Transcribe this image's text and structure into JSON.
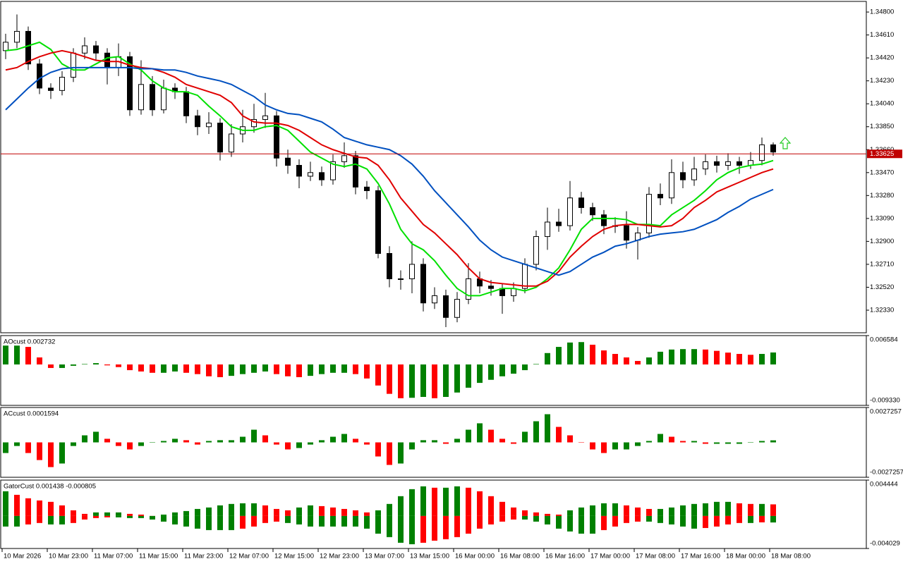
{
  "chart_data": [
    {
      "type": "candlestick",
      "ylim": [
        1.32143,
        1.34888
      ],
      "yticks": [
        {
          "value": 1.348,
          "label": "1.34800"
        },
        {
          "value": 1.3461,
          "label": "1.34610"
        },
        {
          "value": 1.3442,
          "label": "1.34420"
        },
        {
          "value": 1.3423,
          "label": "1.34230"
        },
        {
          "value": 1.3404,
          "label": "1.34040"
        },
        {
          "value": 1.3385,
          "label": "1.33850"
        },
        {
          "value": 1.3366,
          "label": "1.33660"
        },
        {
          "value": 1.3347,
          "label": "1.33470"
        },
        {
          "value": 1.3328,
          "label": "1.33280"
        },
        {
          "value": 1.3309,
          "label": "1.33090"
        },
        {
          "value": 1.329,
          "label": "1.32900"
        },
        {
          "value": 1.3271,
          "label": "1.32710"
        },
        {
          "value": 1.3252,
          "label": "1.32520"
        },
        {
          "value": 1.3233,
          "label": "1.32330"
        }
      ],
      "current_price": 1.33625,
      "current_price_color": "#c00000",
      "up_color": "#ffffff",
      "down_color": "#000000",
      "open": [
        1.3448,
        1.3455,
        1.3464,
        1.3437,
        1.3417,
        1.3415,
        1.3426,
        1.3446,
        1.3452,
        1.3446,
        1.3434,
        1.3443,
        1.3399,
        1.342,
        1.3399,
        1.3417,
        1.3414,
        1.3394,
        1.3385,
        1.3388,
        1.3364,
        1.3379,
        1.3385,
        1.3391,
        1.3394,
        1.3359,
        1.3353,
        1.3344,
        1.3347,
        1.3341,
        1.3356,
        1.3361,
        1.3335,
        1.3332,
        1.328,
        1.3259,
        1.3259,
        1.3271,
        1.3239,
        1.3245,
        1.3227,
        1.3242,
        1.3259,
        1.3253,
        1.3251,
        1.3245,
        1.3251,
        1.3271,
        1.3294,
        1.3306,
        1.3303,
        1.3326,
        1.3318,
        1.3312,
        1.3303,
        1.3303,
        1.3291,
        1.3297,
        1.3329,
        1.3326,
        1.3347,
        1.3341,
        1.335,
        1.3356,
        1.3353,
        1.3356,
        1.3353,
        1.3357,
        1.337
      ],
      "high": [
        1.3462,
        1.3478,
        1.3468,
        1.3441,
        1.3421,
        1.3431,
        1.345,
        1.3459,
        1.3456,
        1.345,
        1.3454,
        1.3447,
        1.344,
        1.3427,
        1.3424,
        1.3421,
        1.3418,
        1.3399,
        1.3397,
        1.3392,
        1.3387,
        1.3399,
        1.3404,
        1.3413,
        1.3398,
        1.3366,
        1.3358,
        1.3356,
        1.3352,
        1.3362,
        1.3372,
        1.3365,
        1.334,
        1.3336,
        1.3286,
        1.3266,
        1.329,
        1.3276,
        1.3252,
        1.325,
        1.3248,
        1.3272,
        1.3265,
        1.3258,
        1.3255,
        1.3256,
        1.3276,
        1.3299,
        1.3318,
        1.3317,
        1.334,
        1.3331,
        1.3322,
        1.3316,
        1.331,
        1.3315,
        1.3302,
        1.3335,
        1.3338,
        1.3358,
        1.3356,
        1.336,
        1.3362,
        1.3361,
        1.3363,
        1.336,
        1.3364,
        1.3376,
        1.3372
      ],
      "low": [
        1.3441,
        1.345,
        1.3432,
        1.3412,
        1.3408,
        1.3411,
        1.3422,
        1.3441,
        1.344,
        1.342,
        1.3427,
        1.3394,
        1.3395,
        1.3394,
        1.3396,
        1.3408,
        1.3388,
        1.3378,
        1.3379,
        1.3357,
        1.336,
        1.3372,
        1.338,
        1.3384,
        1.3352,
        1.3346,
        1.3334,
        1.334,
        1.3336,
        1.3337,
        1.3351,
        1.3329,
        1.3325,
        1.3276,
        1.3252,
        1.325,
        1.3247,
        1.3232,
        1.3234,
        1.3219,
        1.3223,
        1.3238,
        1.3247,
        1.3245,
        1.323,
        1.324,
        1.3247,
        1.3266,
        1.3283,
        1.3298,
        1.3299,
        1.3313,
        1.3307,
        1.3296,
        1.3297,
        1.3284,
        1.3275,
        1.3293,
        1.332,
        1.3321,
        1.3334,
        1.3336,
        1.3345,
        1.3347,
        1.3349,
        1.3346,
        1.335,
        1.3353,
        1.3361
      ],
      "close": [
        1.3455,
        1.3464,
        1.3437,
        1.3417,
        1.3415,
        1.3426,
        1.3446,
        1.3452,
        1.3446,
        1.3434,
        1.3443,
        1.3399,
        1.342,
        1.3399,
        1.3417,
        1.3414,
        1.3394,
        1.3385,
        1.3388,
        1.3364,
        1.3379,
        1.3385,
        1.3391,
        1.3394,
        1.3359,
        1.3353,
        1.3344,
        1.3347,
        1.3341,
        1.3356,
        1.3361,
        1.3335,
        1.3332,
        1.328,
        1.3259,
        1.3259,
        1.3271,
        1.3239,
        1.3245,
        1.3227,
        1.3242,
        1.3259,
        1.3253,
        1.3251,
        1.3245,
        1.3251,
        1.3271,
        1.3294,
        1.3306,
        1.3303,
        1.3326,
        1.3318,
        1.3312,
        1.3303,
        1.3303,
        1.3291,
        1.3297,
        1.3329,
        1.3326,
        1.3347,
        1.3341,
        1.335,
        1.3356,
        1.3353,
        1.3356,
        1.3353,
        1.3357,
        1.337,
        1.3364
      ],
      "series": [
        {
          "color": "#00e000",
          "values": [
            1.3448,
            1.3449,
            1.3452,
            1.3455,
            1.3449,
            1.3437,
            1.3432,
            1.3432,
            1.3437,
            1.3442,
            1.3443,
            1.3437,
            1.3432,
            1.3423,
            1.3417,
            1.3414,
            1.3414,
            1.3411,
            1.3402,
            1.3394,
            1.3385,
            1.3382,
            1.3382,
            1.3385,
            1.3386,
            1.3382,
            1.3373,
            1.3364,
            1.3359,
            1.3354,
            1.3352,
            1.3354,
            1.335,
            1.3338,
            1.3321,
            1.33,
            1.3288,
            1.3283,
            1.3274,
            1.3262,
            1.3251,
            1.3245,
            1.3245,
            1.3248,
            1.3251,
            1.3251,
            1.3249,
            1.3252,
            1.3259,
            1.3268,
            1.3283,
            1.33,
            1.3309,
            1.3309,
            1.3309,
            1.3308,
            1.3304,
            1.3304,
            1.3303,
            1.3312,
            1.3318,
            1.3324,
            1.3332,
            1.3341,
            1.3347,
            1.3351,
            1.3353,
            1.3354,
            1.3357
          ]
        },
        {
          "color": "#e00000",
          "values": [
            1.3432,
            1.3434,
            1.3439,
            1.3443,
            1.3446,
            1.3448,
            1.3446,
            1.3443,
            1.344,
            1.3439,
            1.3439,
            1.3436,
            1.3434,
            1.3433,
            1.343,
            1.3426,
            1.342,
            1.3417,
            1.3414,
            1.3411,
            1.3405,
            1.3394,
            1.3389,
            1.3388,
            1.3388,
            1.3386,
            1.3382,
            1.3376,
            1.337,
            1.3366,
            1.3363,
            1.336,
            1.3359,
            1.3353,
            1.3341,
            1.3326,
            1.3315,
            1.3304,
            1.3297,
            1.3288,
            1.3279,
            1.3268,
            1.3259,
            1.3256,
            1.3255,
            1.3254,
            1.3253,
            1.3253,
            1.3257,
            1.3265,
            1.3277,
            1.3286,
            1.3294,
            1.33,
            1.3303,
            1.3304,
            1.3304,
            1.3303,
            1.3302,
            1.3303,
            1.3309,
            1.3318,
            1.3324,
            1.3331,
            1.3335,
            1.3339,
            1.3343,
            1.3347,
            1.335
          ]
        },
        {
          "color": "#0050c0",
          "values": [
            1.3399,
            1.3408,
            1.3417,
            1.3425,
            1.343,
            1.3433,
            1.3434,
            1.3434,
            1.3434,
            1.3434,
            1.3434,
            1.3434,
            1.3433,
            1.3433,
            1.3432,
            1.3432,
            1.343,
            1.3427,
            1.3425,
            1.3423,
            1.342,
            1.3415,
            1.341,
            1.3403,
            1.3399,
            1.3396,
            1.3395,
            1.3392,
            1.3389,
            1.3383,
            1.3376,
            1.3373,
            1.337,
            1.3368,
            1.3366,
            1.3361,
            1.3354,
            1.3344,
            1.3332,
            1.3322,
            1.3312,
            1.3302,
            1.3291,
            1.3283,
            1.3277,
            1.3274,
            1.3271,
            1.3268,
            1.3265,
            1.3262,
            1.3265,
            1.3271,
            1.3277,
            1.3281,
            1.3286,
            1.3288,
            1.3291,
            1.3294,
            1.3296,
            1.3297,
            1.3298,
            1.33,
            1.3304,
            1.3308,
            1.3314,
            1.3319,
            1.3325,
            1.3329,
            1.3333
          ]
        }
      ],
      "time_labels": [
        "10 Mar 2026",
        "10 Mar 23:00",
        "11 Mar 07:00",
        "11 Mar 15:00",
        "11 Mar 23:00",
        "12 Mar 07:00",
        "12 Mar 15:00",
        "12 Mar 23:00",
        "13 Mar 07:00",
        "13 Mar 15:00",
        "16 Mar 00:00",
        "16 Mar 08:00",
        "16 Mar 16:00",
        "17 Mar 00:00",
        "17 Mar 08:00",
        "17 Mar 16:00",
        "18 Mar 00:00",
        "18 Mar 08:00"
      ]
    },
    {
      "type": "bar",
      "title": "AOcust 0.002732",
      "ylim": [
        -0.00933,
        0.006584
      ],
      "yticks": [
        0.006584,
        {
          "value": -0.00933,
          "label": "-0.009330"
        }
      ],
      "up_color": "#008000",
      "down_color": "#ff0000",
      "values": [
        0.0043,
        0.0043,
        0.004,
        0.0016,
        -0.0008,
        -0.0008,
        -0.0003,
        0.0001,
        0.0003,
        -0.0002,
        -0.0006,
        -0.0013,
        -0.0016,
        -0.0019,
        -0.0019,
        -0.0016,
        -0.0019,
        -0.0022,
        -0.0027,
        -0.0029,
        -0.0026,
        -0.0022,
        -0.0019,
        -0.0016,
        -0.0022,
        -0.0027,
        -0.0029,
        -0.0026,
        -0.0022,
        -0.0019,
        -0.0019,
        -0.0022,
        -0.0032,
        -0.0048,
        -0.0067,
        -0.0077,
        -0.0076,
        -0.0074,
        -0.0077,
        -0.0074,
        -0.0064,
        -0.0053,
        -0.0042,
        -0.0035,
        -0.0027,
        -0.0021,
        -0.0013,
        0.0001,
        0.0026,
        0.004,
        0.005,
        0.0051,
        0.0045,
        0.0032,
        0.0024,
        0.0016,
        0.0008,
        0.0016,
        0.0029,
        0.0034,
        0.0035,
        0.0035,
        0.0034,
        0.0031,
        0.0027,
        0.0024,
        0.0022,
        0.0024,
        0.002732
      ]
    },
    {
      "type": "bar",
      "title": "ACcust 0.0001594",
      "ylim": [
        -0.0027257,
        0.0027257
      ],
      "yticks": [
        0.0027257,
        -0.0027257
      ],
      "up_color": "#008000",
      "down_color": "#ff0000",
      "values": [
        -0.00083,
        -0.00028,
        -0.00083,
        -0.00138,
        -0.00193,
        -0.00165,
        -0.00028,
        0.00055,
        0.00083,
        0.00028,
        -0.00028,
        -0.00055,
        -0.00028,
        0,
        0.00011,
        0.00028,
        0.00017,
        -0.00017,
        0.00011,
        0.00017,
        0.00017,
        0.00044,
        0.00099,
        0.00055,
        -0.00017,
        -0.00055,
        -0.00044,
        -0.00017,
        0.00017,
        0.00044,
        0.00066,
        0.00028,
        -0.00017,
        -0.0011,
        -0.00176,
        -0.00165,
        -0.00055,
        0.00017,
        0.00017,
        -0.00011,
        0.00028,
        0.00099,
        0.00149,
        0.00099,
        0.00028,
        -0.00011,
        0.00083,
        0.00165,
        0.0022,
        0.00121,
        0.00055,
        0,
        -0.00055,
        -0.00083,
        -0.00055,
        -0.00055,
        -0.00028,
        0.00011,
        0.00066,
        0.00044,
        0.00011,
        0.00011,
        -0.00011,
        -0.00011,
        -0.00011,
        -0.00011,
        0,
        0.00011,
        0.0001594
      ]
    },
    {
      "type": "gator",
      "title": "GatorCust 0.001438 -0.000805",
      "ylim": [
        -0.004029,
        0.004444
      ],
      "yticks": [
        0.004444,
        -0.004029
      ],
      "up_color": "#008000",
      "down_color": "#ff0000",
      "upper": [
        0.00306,
        0.00262,
        0.00219,
        0.00192,
        0.00175,
        0.00131,
        0.0007,
        0.00026,
        0.00044,
        0.00044,
        0.00044,
        0.00026,
        0.00017,
        0,
        0.00017,
        0.00044,
        0.00061,
        0.00087,
        0.00105,
        0.00131,
        0.00149,
        0.00157,
        0.00157,
        0.00131,
        0.00087,
        0.0007,
        0.00105,
        0.00131,
        0.00122,
        0.00105,
        0.00087,
        0.0007,
        0.00044,
        0.0007,
        0.00149,
        0.00245,
        0.00332,
        0.00367,
        0.0035,
        0.0035,
        0.00367,
        0.0035,
        0.00306,
        0.00245,
        0.00175,
        0.00105,
        0.0007,
        0.00044,
        0.00026,
        0.00017,
        0.0007,
        0.00105,
        0.00131,
        0.00157,
        0.00157,
        0.00131,
        0.00105,
        0.00087,
        0.00087,
        0.00105,
        0.00131,
        0.00149,
        0.00157,
        0.00175,
        0.00175,
        0.00157,
        0.00149,
        0.00149,
        0.001438
      ],
      "lower": [
        -0.00131,
        -0.00131,
        -0.00105,
        -0.00087,
        -0.00105,
        -0.00105,
        -0.00087,
        -0.00044,
        -0.00026,
        -0.00017,
        -0.00017,
        -0.00026,
        -0.00026,
        -0.00044,
        -0.0007,
        -0.00105,
        -0.00131,
        -0.00157,
        -0.00175,
        -0.00175,
        -0.00175,
        -0.00157,
        -0.00131,
        -0.00087,
        -0.0007,
        -0.00087,
        -0.00105,
        -0.00131,
        -0.00131,
        -0.00131,
        -0.00131,
        -0.00131,
        -0.00157,
        -0.00219,
        -0.00262,
        -0.00332,
        -0.0035,
        -0.00332,
        -0.00306,
        -0.00288,
        -0.00262,
        -0.00219,
        -0.00157,
        -0.00105,
        -0.0007,
        -0.00044,
        -0.00044,
        -0.0007,
        -0.00105,
        -0.00157,
        -0.00192,
        -0.00219,
        -0.00219,
        -0.00175,
        -0.00131,
        -0.00087,
        -0.0007,
        -0.0007,
        -0.00087,
        -0.00105,
        -0.00131,
        -0.00157,
        -0.00149,
        -0.00131,
        -0.00105,
        -0.00087,
        -0.00087,
        -0.00079,
        -0.000805
      ]
    }
  ]
}
